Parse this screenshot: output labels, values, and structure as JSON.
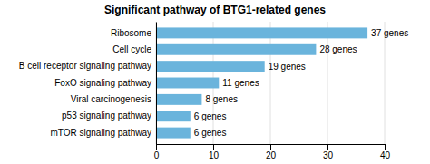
{
  "chart_data": {
    "type": "bar",
    "orientation": "horizontal",
    "title": "Significant pathway of BTG1-related genes",
    "categories": [
      "mTOR signaling pathway",
      "p53 signaling pathway",
      "Viral carcinogenesis",
      "FoxO signaling pathway",
      "B cell receptor signaling pathway",
      "Cell cycle",
      "Ribosome"
    ],
    "values": [
      6,
      6,
      8,
      11,
      19,
      28,
      37
    ],
    "value_labels": [
      "6 genes",
      "6 genes",
      "8 genes",
      "11 genes",
      "19 genes",
      "28 genes",
      "37 genes"
    ],
    "data_labels": true,
    "color": "#6AB4DC",
    "xlim": [
      0,
      40
    ],
    "xticks": [
      0,
      10,
      20,
      30,
      40
    ],
    "grid": true
  }
}
